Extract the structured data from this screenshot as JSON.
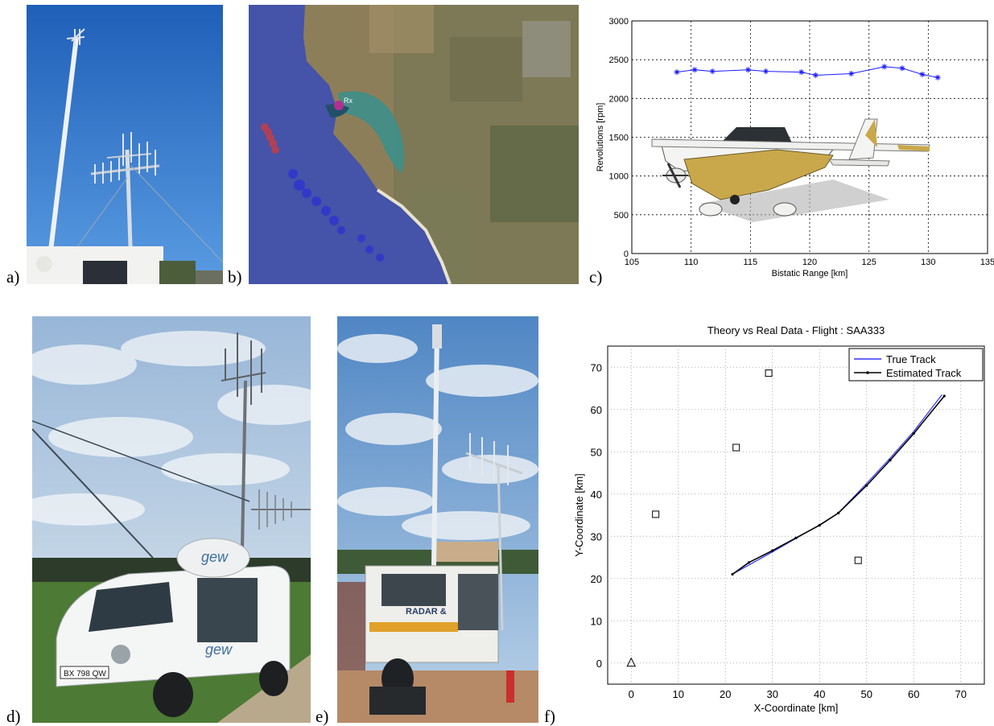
{
  "panel_labels": {
    "a": "a)",
    "b": "b)",
    "c": "c)",
    "d": "d)",
    "e": "e)",
    "f": "f)"
  },
  "panel_b": {
    "rx_label": "Rx"
  },
  "panel_d": {
    "vehicle_logo": "gew",
    "plate_text": "BX 798 QW"
  },
  "panel_e": {
    "vehicle_text": "RADAR &"
  },
  "chart_data": [
    {
      "type": "line",
      "title": "",
      "xlabel": "Bistatic Range [km]",
      "ylabel": "Revolutions [rpm]",
      "xlim": [
        105,
        135
      ],
      "ylim": [
        0,
        3000
      ],
      "xticks": [
        105,
        110,
        115,
        120,
        125,
        130,
        135
      ],
      "yticks": [
        0,
        500,
        1000,
        1500,
        2000,
        2500,
        3000
      ],
      "grid": true,
      "series": [
        {
          "color": "#1a1aff",
          "marker": "asterisk",
          "x": [
            108.8,
            110.3,
            111.8,
            114.8,
            116.3,
            119.3,
            120.5,
            123.5,
            126.3,
            127.8,
            129.5,
            130.8
          ],
          "y": [
            2340,
            2370,
            2350,
            2370,
            2350,
            2340,
            2300,
            2320,
            2410,
            2390,
            2310,
            2270
          ]
        }
      ]
    },
    {
      "type": "line",
      "title": "Theory vs Real Data - Flight : SAA333",
      "xlabel": "X-Coordinate [km]",
      "ylabel": "Y-Coordinate [km]",
      "xlim": [
        -5,
        75
      ],
      "ylim": [
        -5,
        75
      ],
      "xticks": [
        0,
        10,
        20,
        30,
        40,
        50,
        60,
        70
      ],
      "yticks": [
        0,
        10,
        20,
        30,
        40,
        50,
        60,
        70
      ],
      "grid": true,
      "legend_position": "top-right",
      "series": [
        {
          "name": "True Track",
          "color": "#3333ff",
          "x": [
            21.5,
            25,
            30,
            35,
            40,
            44,
            50,
            55,
            60,
            66
          ],
          "y": [
            21,
            23.2,
            26.3,
            29.5,
            32.7,
            35.5,
            42.5,
            48.5,
            54.8,
            63.5
          ]
        },
        {
          "name": "Estimated Track",
          "color": "#000000",
          "x": [
            21.5,
            25,
            30,
            35,
            40,
            44,
            50,
            55,
            60,
            66.5
          ],
          "y": [
            21,
            23.8,
            26.6,
            29.6,
            32.6,
            35.5,
            42,
            48,
            54.3,
            63.2
          ]
        }
      ],
      "transmitters": {
        "marker": "square",
        "x": [
          5.2,
          22.3,
          29.2,
          48.2
        ],
        "y": [
          35.2,
          51,
          68.6,
          24.3
        ]
      },
      "receiver": {
        "marker": "triangle",
        "x": [
          0
        ],
        "y": [
          0
        ]
      }
    }
  ]
}
